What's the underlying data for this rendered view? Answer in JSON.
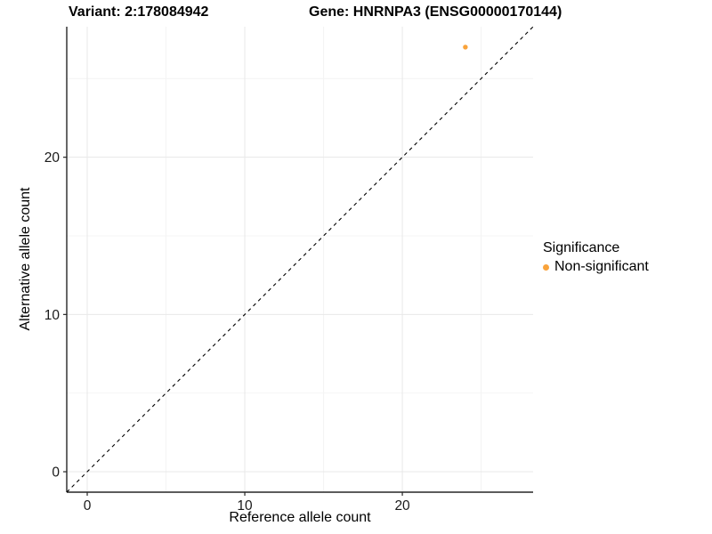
{
  "chart_data": {
    "type": "scatter",
    "title_left": "Variant: 2:178084942",
    "title_right": "Gene: HNRNPA3 (ENSG00000170144)",
    "xlabel": "Reference allele count",
    "ylabel": "Alternative allele count",
    "xlim": [
      -1.3,
      28.3
    ],
    "ylim": [
      -1.3,
      28.3
    ],
    "x_ticks": [
      0,
      10,
      20
    ],
    "y_ticks": [
      0,
      10,
      20
    ],
    "x_minor_ticks": [
      5,
      15,
      25
    ],
    "y_minor_ticks": [
      5,
      15,
      25
    ],
    "grid": true,
    "legend_position": "right",
    "reference_line": {
      "type": "identity",
      "slope": 1,
      "intercept": 0,
      "style": "dashed",
      "color": "#000000"
    },
    "series": [
      {
        "name": "Non-significant",
        "color": "#F9A33B",
        "points": [
          {
            "x": 24,
            "y": 27
          }
        ]
      }
    ],
    "legend": {
      "title": "Significance",
      "entries": [
        {
          "label": "Non-significant",
          "color": "#F9A33B"
        }
      ]
    },
    "style": {
      "point_color": "#F9A33B",
      "axis_line_color": "#262626",
      "tick_label_color": "#1a1a1a",
      "grid_major_color": "#e8e8e8",
      "grid_minor_color": "#f4f4f4",
      "background": "#ffffff"
    }
  }
}
